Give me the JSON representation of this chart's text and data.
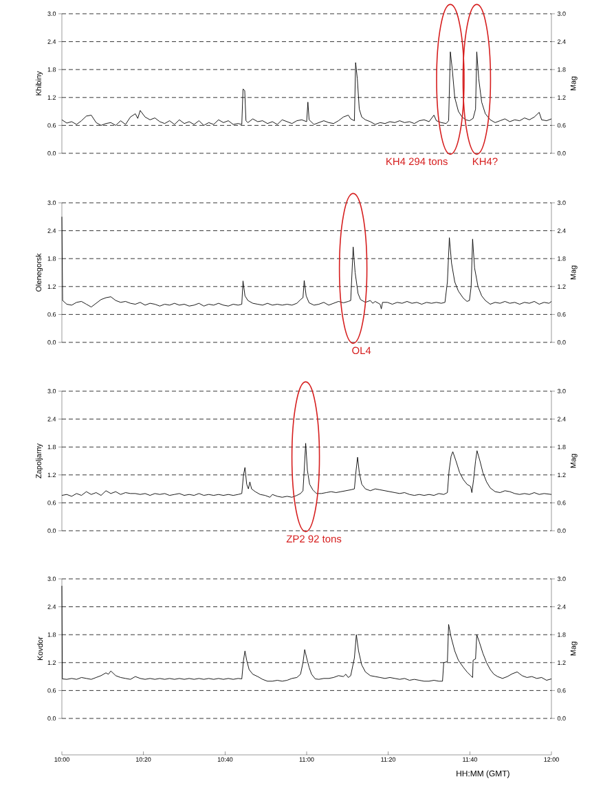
{
  "chart_data": [
    {
      "type": "line",
      "ylabel": "Khibiny",
      "y2label": "Mag",
      "xlim": [
        10,
        12
      ],
      "ylim": [
        0,
        3
      ],
      "tick_labels": "y",
      "grid": "y",
      "yticks": [
        {
          "value": 0,
          "label": "0.0"
        },
        {
          "value": 0.6,
          "label": "0.6"
        },
        {
          "value": 1.2,
          "label": "1.2"
        },
        {
          "value": 1.8,
          "label": "1.8"
        },
        {
          "value": 2.4,
          "label": "2.4"
        },
        {
          "value": 3,
          "label": "3.0"
        }
      ],
      "y2lim": [
        0,
        3
      ],
      "y2ticks": [
        {
          "value": 0,
          "label": "0.0"
        },
        {
          "value": 0.6,
          "label": "0.6"
        },
        {
          "value": 1.2,
          "label": "1.2"
        },
        {
          "value": 1.8,
          "label": "1.8"
        },
        {
          "value": 2.4,
          "label": "2.4"
        },
        {
          "value": 3,
          "label": "3.0"
        }
      ],
      "annotations": [
        "KH4 294 tons",
        "KH4?"
      ],
      "series": [
        {
          "color": "#000000",
          "x": [
            10.0,
            10.02,
            10.04,
            10.06,
            10.08,
            10.1,
            10.12,
            10.14,
            10.16,
            10.18,
            10.2,
            10.22,
            10.24,
            10.26,
            10.28,
            10.3,
            10.31,
            10.32,
            10.34,
            10.36,
            10.38,
            10.4,
            10.42,
            10.44,
            10.46,
            10.48,
            10.5,
            10.52,
            10.54,
            10.56,
            10.58,
            10.6,
            10.62,
            10.64,
            10.66,
            10.68,
            10.7,
            10.72,
            10.735,
            10.74,
            10.747,
            10.752,
            10.76,
            10.78,
            10.8,
            10.82,
            10.84,
            10.86,
            10.88,
            10.9,
            10.92,
            10.94,
            10.96,
            10.98,
            11.0,
            11.005,
            11.01,
            11.03,
            11.05,
            11.07,
            11.09,
            11.11,
            11.13,
            11.15,
            11.17,
            11.18,
            11.195,
            11.2,
            11.207,
            11.215,
            11.225,
            11.24,
            11.26,
            11.28,
            11.3,
            11.32,
            11.34,
            11.36,
            11.38,
            11.4,
            11.42,
            11.44,
            11.46,
            11.48,
            11.5,
            11.52,
            11.53,
            11.55,
            11.57,
            11.58,
            11.587,
            11.595,
            11.605,
            11.62,
            11.635,
            11.65,
            11.665,
            11.68,
            11.69,
            11.695,
            11.703,
            11.715,
            11.73,
            11.75,
            11.77,
            11.79,
            11.81,
            11.83,
            11.85,
            11.87,
            11.89,
            11.91,
            11.93,
            11.95,
            11.96,
            11.98,
            12.0
          ],
          "values": [
            0.72,
            0.65,
            0.68,
            0.62,
            0.7,
            0.8,
            0.82,
            0.66,
            0.6,
            0.64,
            0.66,
            0.6,
            0.7,
            0.62,
            0.78,
            0.85,
            0.75,
            0.92,
            0.78,
            0.72,
            0.76,
            0.68,
            0.64,
            0.7,
            0.62,
            0.72,
            0.64,
            0.68,
            0.62,
            0.7,
            0.6,
            0.66,
            0.62,
            0.72,
            0.66,
            0.7,
            0.62,
            0.64,
            0.62,
            1.38,
            1.35,
            0.7,
            0.66,
            0.74,
            0.68,
            0.7,
            0.64,
            0.68,
            0.62,
            0.72,
            0.68,
            0.64,
            0.7,
            0.72,
            0.68,
            1.1,
            0.72,
            0.62,
            0.66,
            0.7,
            0.66,
            0.64,
            0.7,
            0.78,
            0.82,
            0.74,
            0.7,
            1.95,
            1.6,
            0.95,
            0.78,
            0.72,
            0.68,
            0.62,
            0.66,
            0.64,
            0.68,
            0.66,
            0.7,
            0.66,
            0.68,
            0.64,
            0.7,
            0.72,
            0.68,
            0.82,
            0.7,
            0.66,
            0.64,
            0.7,
            2.18,
            1.8,
            1.2,
            0.9,
            0.78,
            0.72,
            0.7,
            0.75,
            0.95,
            2.18,
            1.6,
            1.1,
            0.85,
            0.72,
            0.66,
            0.7,
            0.74,
            0.68,
            0.72,
            0.7,
            0.76,
            0.72,
            0.78,
            0.88,
            0.72,
            0.7,
            0.74
          ]
        }
      ]
    },
    {
      "type": "line",
      "ylabel": "Olenegorsk",
      "y2label": "Mag",
      "xlim": [
        10,
        12
      ],
      "ylim": [
        0,
        3
      ],
      "tick_labels": "y",
      "grid": "y",
      "yticks": [
        {
          "value": 0,
          "label": "0.0"
        },
        {
          "value": 0.6,
          "label": "0.6"
        },
        {
          "value": 1.2,
          "label": "1.2"
        },
        {
          "value": 1.8,
          "label": "1.8"
        },
        {
          "value": 2.4,
          "label": "2.4"
        },
        {
          "value": 3,
          "label": "3.0"
        }
      ],
      "y2lim": [
        0,
        3
      ],
      "y2ticks": [
        {
          "value": 0,
          "label": "0.0"
        },
        {
          "value": 0.6,
          "label": "0.6"
        },
        {
          "value": 1.2,
          "label": "1.2"
        },
        {
          "value": 1.8,
          "label": "1.8"
        },
        {
          "value": 2.4,
          "label": "2.4"
        },
        {
          "value": 3,
          "label": "3.0"
        }
      ],
      "annotations": [
        "OL4"
      ],
      "series": [
        {
          "color": "#000000",
          "x": [
            10.0,
            10.003,
            10.02,
            10.04,
            10.06,
            10.08,
            10.1,
            10.12,
            10.14,
            10.16,
            10.18,
            10.2,
            10.22,
            10.24,
            10.26,
            10.28,
            10.3,
            10.32,
            10.34,
            10.36,
            10.38,
            10.4,
            10.42,
            10.44,
            10.46,
            10.48,
            10.5,
            10.52,
            10.54,
            10.56,
            10.58,
            10.6,
            10.62,
            10.64,
            10.66,
            10.68,
            10.7,
            10.72,
            10.735,
            10.74,
            10.748,
            10.76,
            10.78,
            10.8,
            10.82,
            10.84,
            10.86,
            10.88,
            10.9,
            10.92,
            10.94,
            10.96,
            10.975,
            10.985,
            10.99,
            10.998,
            11.01,
            11.03,
            11.05,
            11.07,
            11.09,
            11.11,
            11.13,
            11.15,
            11.17,
            11.18,
            11.19,
            11.198,
            11.21,
            11.22,
            11.24,
            11.26,
            11.27,
            11.28,
            11.3,
            11.305,
            11.31,
            11.33,
            11.35,
            11.37,
            11.39,
            11.41,
            11.43,
            11.45,
            11.47,
            11.49,
            11.51,
            11.53,
            11.55,
            11.565,
            11.575,
            11.583,
            11.592,
            11.605,
            11.62,
            11.64,
            11.655,
            11.665,
            11.672,
            11.678,
            11.686,
            11.7,
            11.715,
            11.73,
            11.75,
            11.77,
            11.79,
            11.81,
            11.83,
            11.85,
            11.87,
            11.89,
            11.91,
            11.93,
            11.95,
            11.97,
            11.99,
            12.0
          ],
          "values": [
            2.7,
            0.9,
            0.82,
            0.8,
            0.86,
            0.88,
            0.82,
            0.76,
            0.84,
            0.92,
            0.96,
            0.98,
            0.9,
            0.86,
            0.88,
            0.84,
            0.82,
            0.86,
            0.8,
            0.84,
            0.82,
            0.78,
            0.82,
            0.8,
            0.84,
            0.8,
            0.82,
            0.78,
            0.8,
            0.84,
            0.78,
            0.82,
            0.8,
            0.84,
            0.8,
            0.78,
            0.82,
            0.8,
            0.82,
            1.32,
            1.0,
            0.9,
            0.84,
            0.82,
            0.8,
            0.84,
            0.8,
            0.82,
            0.8,
            0.82,
            0.8,
            0.84,
            0.92,
            0.96,
            1.33,
            1.0,
            0.85,
            0.8,
            0.82,
            0.86,
            0.8,
            0.84,
            0.88,
            0.85,
            0.88,
            0.9,
            2.05,
            1.5,
            1.05,
            0.92,
            0.86,
            0.9,
            0.84,
            0.88,
            0.82,
            0.72,
            0.86,
            0.86,
            0.82,
            0.86,
            0.84,
            0.88,
            0.84,
            0.86,
            0.82,
            0.86,
            0.84,
            0.86,
            0.84,
            0.86,
            1.3,
            2.25,
            1.7,
            1.3,
            1.1,
            0.95,
            0.88,
            0.9,
            1.2,
            2.22,
            1.6,
            1.2,
            1.0,
            0.9,
            0.82,
            0.86,
            0.84,
            0.88,
            0.84,
            0.86,
            0.82,
            0.86,
            0.84,
            0.88,
            0.82,
            0.86,
            0.84,
            0.88
          ]
        }
      ]
    },
    {
      "type": "line",
      "ylabel": "Zapoljarny",
      "y2label": "Mag",
      "xlim": [
        10,
        12
      ],
      "ylim": [
        0,
        3
      ],
      "tick_labels": "y",
      "grid": "y",
      "yticks": [
        {
          "value": 0,
          "label": "0.0"
        },
        {
          "value": 0.6,
          "label": "0.6"
        },
        {
          "value": 1.2,
          "label": "1.2"
        },
        {
          "value": 1.8,
          "label": "1.8"
        },
        {
          "value": 2.4,
          "label": "2.4"
        },
        {
          "value": 3,
          "label": "3.0"
        }
      ],
      "y2lim": [
        0,
        3
      ],
      "y2ticks": [
        {
          "value": 0,
          "label": "0.0"
        },
        {
          "value": 0.6,
          "label": "0.6"
        },
        {
          "value": 1.2,
          "label": "1.2"
        },
        {
          "value": 1.8,
          "label": "1.8"
        },
        {
          "value": 2.4,
          "label": "2.4"
        },
        {
          "value": 3,
          "label": "3.0"
        }
      ],
      "annotations": [
        "ZP2 92 tons"
      ],
      "series": [
        {
          "color": "#000000",
          "x": [
            10.0,
            10.02,
            10.04,
            10.06,
            10.08,
            10.1,
            10.12,
            10.14,
            10.16,
            10.18,
            10.2,
            10.22,
            10.24,
            10.26,
            10.28,
            10.3,
            10.32,
            10.34,
            10.36,
            10.38,
            10.4,
            10.42,
            10.44,
            10.46,
            10.48,
            10.5,
            10.52,
            10.54,
            10.56,
            10.58,
            10.6,
            10.62,
            10.64,
            10.66,
            10.68,
            10.7,
            10.72,
            10.735,
            10.742,
            10.748,
            10.755,
            10.762,
            10.768,
            10.775,
            10.79,
            10.81,
            10.83,
            10.85,
            10.86,
            10.88,
            10.9,
            10.92,
            10.94,
            10.96,
            10.975,
            10.985,
            10.99,
            10.996,
            11.003,
            11.012,
            11.025,
            11.04,
            11.06,
            11.08,
            11.1,
            11.12,
            11.14,
            11.16,
            11.18,
            11.195,
            11.202,
            11.208,
            11.215,
            11.225,
            11.24,
            11.26,
            11.28,
            11.3,
            11.32,
            11.34,
            11.36,
            11.38,
            11.4,
            11.42,
            11.44,
            11.46,
            11.48,
            11.5,
            11.52,
            11.54,
            11.56,
            11.575,
            11.582,
            11.59,
            11.597,
            11.61,
            11.625,
            11.64,
            11.655,
            11.67,
            11.675,
            11.682,
            11.69,
            11.696,
            11.708,
            11.72,
            11.735,
            11.75,
            11.77,
            11.79,
            11.81,
            11.83,
            11.85,
            11.87,
            11.89,
            11.91,
            11.93,
            11.95,
            11.97,
            12.0
          ],
          "values": [
            0.76,
            0.78,
            0.74,
            0.8,
            0.76,
            0.84,
            0.78,
            0.82,
            0.76,
            0.86,
            0.8,
            0.84,
            0.78,
            0.82,
            0.8,
            0.8,
            0.78,
            0.8,
            0.76,
            0.8,
            0.78,
            0.8,
            0.76,
            0.78,
            0.8,
            0.76,
            0.78,
            0.76,
            0.8,
            0.76,
            0.78,
            0.76,
            0.78,
            0.76,
            0.78,
            0.76,
            0.78,
            0.8,
            1.2,
            1.36,
            1.0,
            0.9,
            1.05,
            0.9,
            0.84,
            0.78,
            0.76,
            0.72,
            0.78,
            0.74,
            0.72,
            0.74,
            0.72,
            0.76,
            0.8,
            0.86,
            1.3,
            1.88,
            1.3,
            1.0,
            0.88,
            0.8,
            0.8,
            0.82,
            0.84,
            0.82,
            0.84,
            0.86,
            0.88,
            0.9,
            1.3,
            1.58,
            1.25,
            1.0,
            0.9,
            0.86,
            0.9,
            0.88,
            0.86,
            0.84,
            0.82,
            0.8,
            0.82,
            0.78,
            0.76,
            0.78,
            0.76,
            0.78,
            0.76,
            0.8,
            0.78,
            0.82,
            1.3,
            1.6,
            1.7,
            1.5,
            1.25,
            1.1,
            1.0,
            0.95,
            0.82,
            1.1,
            1.5,
            1.72,
            1.5,
            1.25,
            1.05,
            0.92,
            0.84,
            0.82,
            0.86,
            0.84,
            0.8,
            0.78,
            0.8,
            0.78,
            0.82,
            0.78,
            0.8,
            0.78
          ]
        }
      ]
    },
    {
      "type": "line",
      "ylabel": "Kovdor",
      "y2label": "Mag",
      "xlabel": "HH:MM (GMT)",
      "xlim": [
        10,
        12
      ],
      "ylim": [
        0,
        3
      ],
      "grid": "y",
      "xticks": [
        {
          "value": 10,
          "label": "10:00"
        },
        {
          "value": 10.333,
          "label": "10:20"
        },
        {
          "value": 10.667,
          "label": "10:40"
        },
        {
          "value": 11,
          "label": "11:00"
        },
        {
          "value": 11.333,
          "label": "11:20"
        },
        {
          "value": 11.667,
          "label": "11:40"
        },
        {
          "value": 12,
          "label": "12:00"
        }
      ],
      "yticks": [
        {
          "value": 0,
          "label": "0.0"
        },
        {
          "value": 0.6,
          "label": "0.6"
        },
        {
          "value": 1.2,
          "label": "1.2"
        },
        {
          "value": 1.8,
          "label": "1.8"
        },
        {
          "value": 2.4,
          "label": "2.4"
        },
        {
          "value": 3,
          "label": "3.0"
        }
      ],
      "y2lim": [
        0,
        3
      ],
      "y2ticks": [
        {
          "value": 0,
          "label": "0.0"
        },
        {
          "value": 0.6,
          "label": "0.6"
        },
        {
          "value": 1.2,
          "label": "1.2"
        },
        {
          "value": 1.8,
          "label": "1.8"
        },
        {
          "value": 2.4,
          "label": "2.4"
        },
        {
          "value": 3,
          "label": "3.0"
        }
      ],
      "series": [
        {
          "color": "#000000",
          "x": [
            10.0,
            10.002,
            10.02,
            10.04,
            10.06,
            10.08,
            10.1,
            10.12,
            10.14,
            10.16,
            10.18,
            10.19,
            10.2,
            10.22,
            10.24,
            10.26,
            10.28,
            10.3,
            10.32,
            10.34,
            10.36,
            10.38,
            10.4,
            10.42,
            10.44,
            10.46,
            10.48,
            10.5,
            10.52,
            10.54,
            10.56,
            10.58,
            10.6,
            10.62,
            10.64,
            10.66,
            10.68,
            10.7,
            10.72,
            10.735,
            10.742,
            10.748,
            10.755,
            10.765,
            10.78,
            10.8,
            10.82,
            10.84,
            10.86,
            10.88,
            10.9,
            10.92,
            10.94,
            10.96,
            10.975,
            10.985,
            10.992,
            11.0,
            11.01,
            11.02,
            11.035,
            11.05,
            11.07,
            11.09,
            11.11,
            11.13,
            11.15,
            11.16,
            11.17,
            11.18,
            11.195,
            11.203,
            11.212,
            11.225,
            11.24,
            11.26,
            11.28,
            11.3,
            11.32,
            11.34,
            11.36,
            11.38,
            11.4,
            11.42,
            11.44,
            11.46,
            11.48,
            11.5,
            11.52,
            11.54,
            11.555,
            11.56,
            11.575,
            11.58,
            11.59,
            11.605,
            11.62,
            11.64,
            11.655,
            11.67,
            11.678,
            11.68,
            11.69,
            11.695,
            11.705,
            11.72,
            11.735,
            11.75,
            11.765,
            11.78,
            11.8,
            11.82,
            11.84,
            11.86,
            11.87,
            11.88,
            11.9,
            11.92,
            11.94,
            11.96,
            11.98,
            12.0
          ],
          "values": [
            2.85,
            0.85,
            0.84,
            0.86,
            0.84,
            0.88,
            0.86,
            0.84,
            0.88,
            0.92,
            0.98,
            0.95,
            1.02,
            0.92,
            0.88,
            0.86,
            0.84,
            0.9,
            0.86,
            0.84,
            0.86,
            0.84,
            0.86,
            0.84,
            0.86,
            0.84,
            0.86,
            0.84,
            0.86,
            0.84,
            0.86,
            0.84,
            0.86,
            0.84,
            0.86,
            0.84,
            0.86,
            0.84,
            0.86,
            0.85,
            1.25,
            1.45,
            1.25,
            1.05,
            0.95,
            0.9,
            0.84,
            0.8,
            0.8,
            0.82,
            0.8,
            0.82,
            0.86,
            0.88,
            0.95,
            1.2,
            1.48,
            1.3,
            1.1,
            0.95,
            0.85,
            0.84,
            0.86,
            0.86,
            0.88,
            0.92,
            0.9,
            0.95,
            0.88,
            0.92,
            1.3,
            1.8,
            1.45,
            1.15,
            1.0,
            0.92,
            0.9,
            0.88,
            0.86,
            0.88,
            0.86,
            0.84,
            0.86,
            0.82,
            0.84,
            0.82,
            0.8,
            0.8,
            0.82,
            0.8,
            0.8,
            1.2,
            1.22,
            2.02,
            1.75,
            1.45,
            1.25,
            1.1,
            1.0,
            0.92,
            0.88,
            1.25,
            1.28,
            1.8,
            1.65,
            1.4,
            1.2,
            1.05,
            0.95,
            0.9,
            0.86,
            0.9,
            0.96,
            1.0,
            0.96,
            0.92,
            0.88,
            0.9,
            0.86,
            0.88,
            0.82,
            0.85
          ]
        }
      ]
    }
  ]
}
